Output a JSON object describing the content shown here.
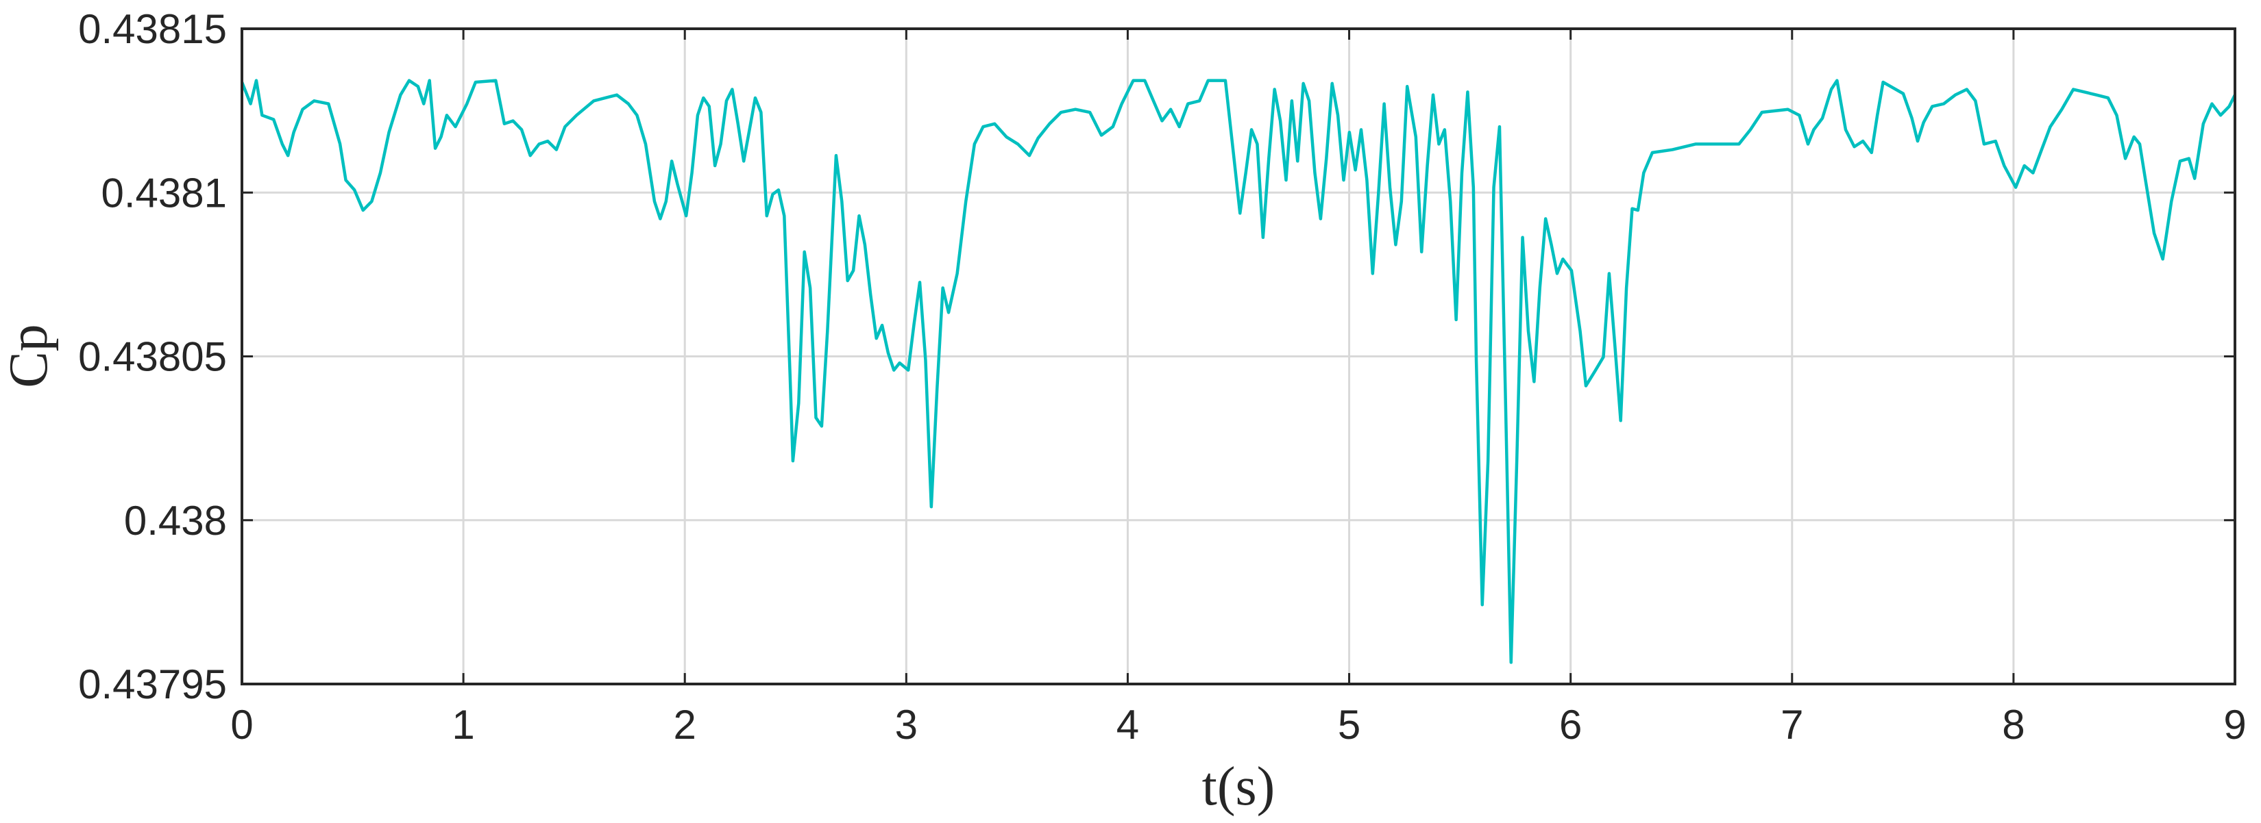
{
  "chart_data": {
    "type": "line",
    "xlabel": "t(s)",
    "ylabel": "Cp",
    "xlim": [
      0,
      9
    ],
    "xticks": [
      0,
      1,
      2,
      3,
      4,
      5,
      6,
      7,
      8,
      9
    ],
    "ylim": [
      0.43795,
      0.43815
    ],
    "yticks": [
      0.43795,
      0.438,
      0.43805,
      0.4381,
      0.43815
    ],
    "grid": true,
    "series": [
      {
        "color": "#00bfbf",
        "x": [
          0,
          0.039,
          0.065,
          0.091,
          0.143,
          0.182,
          0.208,
          0.234,
          0.274,
          0.326,
          0.391,
          0.443,
          0.469,
          0.508,
          0.547,
          0.586,
          0.625,
          0.664,
          0.716,
          0.755,
          0.795,
          0.821,
          0.847,
          0.873,
          0.899,
          0.925,
          0.964,
          1.016,
          1.055,
          1.146,
          1.185,
          1.224,
          1.263,
          1.302,
          1.342,
          1.381,
          1.42,
          1.459,
          1.511,
          1.589,
          1.693,
          1.745,
          1.784,
          1.823,
          1.863,
          1.889,
          1.915,
          1.941,
          1.967,
          2.006,
          2.032,
          2.058,
          2.084,
          2.11,
          2.136,
          2.162,
          2.188,
          2.214,
          2.24,
          2.266,
          2.292,
          2.318,
          2.344,
          2.37,
          2.397,
          2.423,
          2.449,
          2.475,
          2.488,
          2.514,
          2.54,
          2.566,
          2.592,
          2.618,
          2.644,
          2.683,
          2.709,
          2.735,
          2.761,
          2.787,
          2.813,
          2.839,
          2.865,
          2.891,
          2.918,
          2.944,
          2.97,
          3.009,
          3.035,
          3.061,
          3.087,
          3.113,
          3.139,
          3.165,
          3.191,
          3.23,
          3.269,
          3.308,
          3.347,
          3.399,
          3.452,
          3.504,
          3.556,
          3.595,
          3.647,
          3.699,
          3.764,
          3.829,
          3.881,
          3.933,
          3.973,
          4.025,
          4.077,
          4.116,
          4.155,
          4.194,
          4.233,
          4.272,
          4.324,
          4.363,
          4.441,
          4.48,
          4.507,
          4.533,
          4.559,
          4.585,
          4.611,
          4.637,
          4.663,
          4.689,
          4.715,
          4.741,
          4.767,
          4.793,
          4.819,
          4.845,
          4.871,
          4.897,
          4.923,
          4.949,
          4.975,
          5.001,
          5.028,
          5.054,
          5.08,
          5.106,
          5.132,
          5.158,
          5.184,
          5.21,
          5.236,
          5.262,
          5.301,
          5.327,
          5.353,
          5.379,
          5.405,
          5.431,
          5.457,
          5.483,
          5.509,
          5.535,
          5.561,
          5.574,
          5.601,
          5.627,
          5.653,
          5.679,
          5.705,
          5.731,
          5.757,
          5.783,
          5.809,
          5.835,
          5.861,
          5.887,
          5.913,
          5.939,
          5.965,
          6.004,
          6.043,
          6.069,
          6.109,
          6.148,
          6.174,
          6.2,
          6.226,
          6.252,
          6.278,
          6.304,
          6.33,
          6.369,
          6.46,
          6.564,
          6.695,
          6.76,
          6.812,
          6.864,
          6.981,
          7.033,
          7.072,
          7.098,
          7.137,
          7.177,
          7.203,
          7.242,
          7.281,
          7.32,
          7.359,
          7.385,
          7.411,
          7.502,
          7.541,
          7.567,
          7.594,
          7.633,
          7.685,
          7.737,
          7.789,
          7.828,
          7.867,
          7.919,
          7.958,
          8.01,
          8.049,
          8.088,
          8.127,
          8.166,
          8.218,
          8.27,
          8.375,
          8.427,
          8.466,
          8.505,
          8.544,
          8.57,
          8.596,
          8.635,
          8.674,
          8.713,
          8.752,
          8.792,
          8.818,
          8.857,
          8.896,
          8.935,
          8.974,
          9.0
        ],
        "values": [
          0.4381337,
          0.4381271,
          0.4381342,
          0.4381236,
          0.4381223,
          0.4381148,
          0.4381113,
          0.4381184,
          0.4381254,
          0.438128,
          0.4381271,
          0.4381148,
          0.4381038,
          0.4381008,
          0.4380946,
          0.4380973,
          0.438106,
          0.4381184,
          0.4381298,
          0.4381342,
          0.4381324,
          0.4381271,
          0.4381342,
          0.4381135,
          0.438117,
          0.4381236,
          0.4381201,
          0.4381271,
          0.4381337,
          0.4381342,
          0.438121,
          0.4381219,
          0.4381192,
          0.4381113,
          0.4381148,
          0.4381157,
          0.4381131,
          0.4381201,
          0.4381236,
          0.438128,
          0.4381298,
          0.4381271,
          0.4381236,
          0.4381148,
          0.4380973,
          0.438092,
          0.4380973,
          0.4381096,
          0.4381025,
          0.4380929,
          0.438106,
          0.4381236,
          0.4381289,
          0.4381263,
          0.4381082,
          0.4381148,
          0.438128,
          0.4381315,
          0.438121,
          0.4381096,
          0.4381192,
          0.4381289,
          0.4381245,
          0.4380929,
          0.4380995,
          0.4381008,
          0.4380929,
          0.4380445,
          0.4380181,
          0.4380357,
          0.4380819,
          0.4380709,
          0.4380313,
          0.4380287,
          0.4380577,
          0.4381113,
          0.4380973,
          0.4380731,
          0.4380762,
          0.4380929,
          0.4380841,
          0.4380687,
          0.4380555,
          0.4380595,
          0.4380511,
          0.4380458,
          0.438048,
          0.4380458,
          0.4380599,
          0.4380726,
          0.4380489,
          0.4380041,
          0.4380401,
          0.4380709,
          0.4380634,
          0.4380753,
          0.4380973,
          0.4381148,
          0.4381201,
          0.438121,
          0.438117,
          0.4381148,
          0.4381113,
          0.4381166,
          0.438121,
          0.4381245,
          0.4381254,
          0.4381245,
          0.4381175,
          0.4381201,
          0.4381271,
          0.4381342,
          0.4381342,
          0.438128,
          0.4381219,
          0.4381254,
          0.4381201,
          0.4381271,
          0.438128,
          0.4381342,
          0.4381342,
          0.4381104,
          0.4380937,
          0.438106,
          0.4381192,
          0.4381148,
          0.4380863,
          0.4381104,
          0.4381315,
          0.4381219,
          0.4381038,
          0.438128,
          0.4381096,
          0.4381333,
          0.438128,
          0.438106,
          0.438092,
          0.4381104,
          0.4381333,
          0.4381236,
          0.4381038,
          0.4381184,
          0.4381069,
          0.4381192,
          0.4381038,
          0.4380753,
          0.4380995,
          0.4381271,
          0.4381016,
          0.4380841,
          0.4380973,
          0.4381324,
          0.438117,
          0.4380819,
          0.4381082,
          0.4381298,
          0.4381148,
          0.4381192,
          0.4380973,
          0.4380612,
          0.438106,
          0.4381307,
          0.4381016,
          0.4380489,
          0.4379742,
          0.4380181,
          0.4381016,
          0.4381201,
          0.4380401,
          0.4379566,
          0.4380181,
          0.4380863,
          0.4380577,
          0.4380423,
          0.4380709,
          0.438092,
          0.4380841,
          0.4380753,
          0.4380797,
          0.4380762,
          0.4380577,
          0.438041,
          0.4380454,
          0.4380498,
          0.4380753,
          0.4380533,
          0.4380304,
          0.4380709,
          0.4380951,
          0.4380946,
          0.438106,
          0.4381122,
          0.4381131,
          0.4381148,
          0.4381148,
          0.4381148,
          0.4381192,
          0.4381245,
          0.4381254,
          0.4381236,
          0.4381148,
          0.4381192,
          0.4381227,
          0.4381315,
          0.4381342,
          0.4381192,
          0.438114,
          0.4381157,
          0.4381122,
          0.4381236,
          0.4381337,
          0.4381302,
          0.4381227,
          0.4381157,
          0.4381214,
          0.4381263,
          0.4381271,
          0.4381298,
          0.4381315,
          0.438128,
          0.4381148,
          0.4381157,
          0.4381082,
          0.4381016,
          0.4381082,
          0.438106,
          0.4381131,
          0.4381201,
          0.4381254,
          0.4381315,
          0.4381298,
          0.4381289,
          0.4381236,
          0.4381104,
          0.438117,
          0.4381148,
          0.4381038,
          0.4380876,
          0.4380797,
          0.4380973,
          0.4381096,
          0.4381104,
          0.4381043,
          0.438121,
          0.4381271,
          0.4381236,
          0.4381263,
          0.4381298
        ]
      }
    ]
  }
}
